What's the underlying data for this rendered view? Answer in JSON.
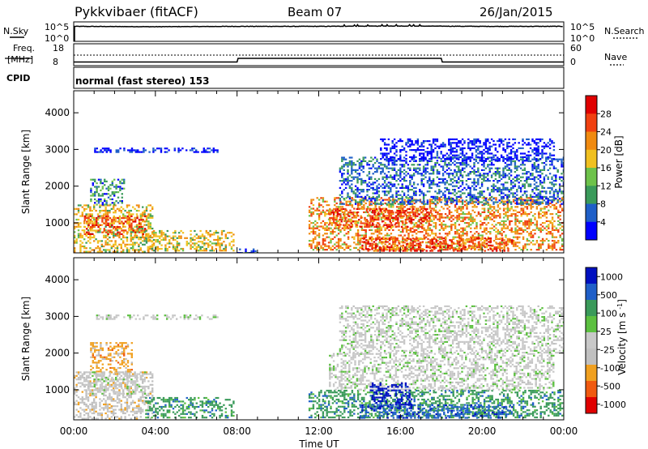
{
  "header": {
    "station": "Pykkvibaer (fitACF)",
    "beam": "Beam 07",
    "date": "26/Jan/2015"
  },
  "top_panels": {
    "nsky_label": "N.Sky",
    "nsearch_label": "N.Search",
    "freq_label_1": "Freq.",
    "freq_label_2": "[MHz]",
    "nave_label": "Nave",
    "cpid_label": "CPID",
    "cpid_text": "normal (fast stereo) 153",
    "noise_ticks_left": [
      "10^5",
      "10^0"
    ],
    "noise_ticks_right": [
      "10^5",
      "10^0"
    ],
    "freq_ticks_left": [
      "18",
      "8"
    ],
    "nave_ticks_right": [
      "60",
      "0"
    ]
  },
  "time_ticks": [
    "00:00",
    "04:00",
    "08:00",
    "12:00",
    "16:00",
    "20:00",
    "00:00"
  ],
  "xlabel": "Time UT",
  "colors": {
    "power": [
      "#0000ff",
      "#1f5fc8",
      "#3a9a5a",
      "#6dc24a",
      "#f0c020",
      "#f08a10",
      "#f04010",
      "#e00000"
    ],
    "velocity": [
      "#e00000",
      "#f05a10",
      "#f0a020",
      "#c0c0c0",
      "#c8c8c8",
      "#5cc040",
      "#3a9a5a",
      "#1f5fc8",
      "#0010c0"
    ]
  },
  "chart_data": [
    {
      "type": "heatmap",
      "title": "",
      "xlabel": "",
      "ylabel": "Slant Range [km]",
      "xlim_hours": [
        0,
        24
      ],
      "ylim": [
        180,
        4600
      ],
      "yticks": [
        1000,
        2000,
        3000,
        4000
      ],
      "colorbar": {
        "label": "Power [dB]",
        "ticks": [
          "4",
          "8",
          "12",
          "16",
          "20",
          "24",
          "28"
        ],
        "range": [
          0,
          30
        ]
      },
      "echo_regions": [
        {
          "t0": 0.0,
          "t1": 3.9,
          "r0": 200,
          "r1": 1500,
          "value": 20
        },
        {
          "t0": 0.5,
          "t1": 3.5,
          "r0": 700,
          "r1": 1200,
          "value": 26
        },
        {
          "t0": 0.8,
          "t1": 2.5,
          "r0": 1500,
          "r1": 2200,
          "value": 12
        },
        {
          "t0": 3.5,
          "t1": 7.8,
          "r0": 250,
          "r1": 800,
          "value": 18
        },
        {
          "t0": 1.0,
          "t1": 7.0,
          "r0": 2950,
          "r1": 3050,
          "value": 4
        },
        {
          "t0": 8.0,
          "t1": 9.2,
          "r0": 200,
          "r1": 300,
          "value": 8
        },
        {
          "t0": 11.5,
          "t1": 24.0,
          "r0": 250,
          "r1": 1700,
          "value": 22
        },
        {
          "t0": 14.0,
          "t1": 21.5,
          "r0": 250,
          "r1": 600,
          "value": 28
        },
        {
          "t0": 12.5,
          "t1": 17.5,
          "r0": 900,
          "r1": 1400,
          "value": 26
        },
        {
          "t0": 13.0,
          "t1": 24.0,
          "r0": 1500,
          "r1": 2800,
          "value": 8
        },
        {
          "t0": 15.0,
          "t1": 23.5,
          "r0": 2700,
          "r1": 3300,
          "value": 4
        }
      ]
    },
    {
      "type": "heatmap",
      "title": "",
      "xlabel": "Time UT",
      "ylabel": "Slant Range [km]",
      "xlim_hours": [
        0,
        24
      ],
      "ylim": [
        180,
        4600
      ],
      "yticks": [
        1000,
        2000,
        3000,
        4000
      ],
      "colorbar": {
        "label": "Velocity [m s^-1]",
        "ticks": [
          "-1000",
          "-500",
          "-100",
          "-25",
          "25",
          "100",
          "500",
          "1000"
        ]
      },
      "echo_regions": [
        {
          "t0": 0.0,
          "t1": 3.9,
          "r0": 200,
          "r1": 1500,
          "value": -100
        },
        {
          "t0": 0.5,
          "t1": 3.5,
          "r0": 900,
          "r1": 1500,
          "value": 0
        },
        {
          "t0": 0.8,
          "t1": 2.8,
          "r0": 1500,
          "r1": 2300,
          "value": -500
        },
        {
          "t0": 3.5,
          "t1": 7.8,
          "r0": 250,
          "r1": 800,
          "value": 100
        },
        {
          "t0": 1.0,
          "t1": 7.0,
          "r0": 2950,
          "r1": 3050,
          "value": 0
        },
        {
          "t0": 11.5,
          "t1": 24.0,
          "r0": 250,
          "r1": 1000,
          "value": 100
        },
        {
          "t0": 12.5,
          "t1": 23.5,
          "r0": 1000,
          "r1": 2000,
          "value": 0
        },
        {
          "t0": 14.0,
          "t1": 21.5,
          "r0": 250,
          "r1": 600,
          "value": 500
        },
        {
          "t0": 14.5,
          "t1": 16.5,
          "r0": 500,
          "r1": 1200,
          "value": 1000
        },
        {
          "t0": 13.0,
          "t1": 24.0,
          "r0": 2000,
          "r1": 3300,
          "value": 0
        }
      ]
    }
  ],
  "aux_series": {
    "noise_sky_log": [
      [
        0,
        4.2
      ],
      [
        4,
        4.1
      ],
      [
        8,
        4.2
      ],
      [
        12,
        4.2
      ],
      [
        16,
        4.3
      ],
      [
        20,
        4.2
      ],
      [
        24,
        4.2
      ]
    ],
    "frequency_mhz": [
      [
        0,
        9.0
      ],
      [
        8,
        9.0
      ],
      [
        8.05,
        11.0
      ],
      [
        18,
        11.0
      ],
      [
        18.05,
        9.0
      ],
      [
        24,
        9.0
      ]
    ],
    "nave": [
      [
        0,
        30
      ],
      [
        24,
        30
      ]
    ]
  }
}
